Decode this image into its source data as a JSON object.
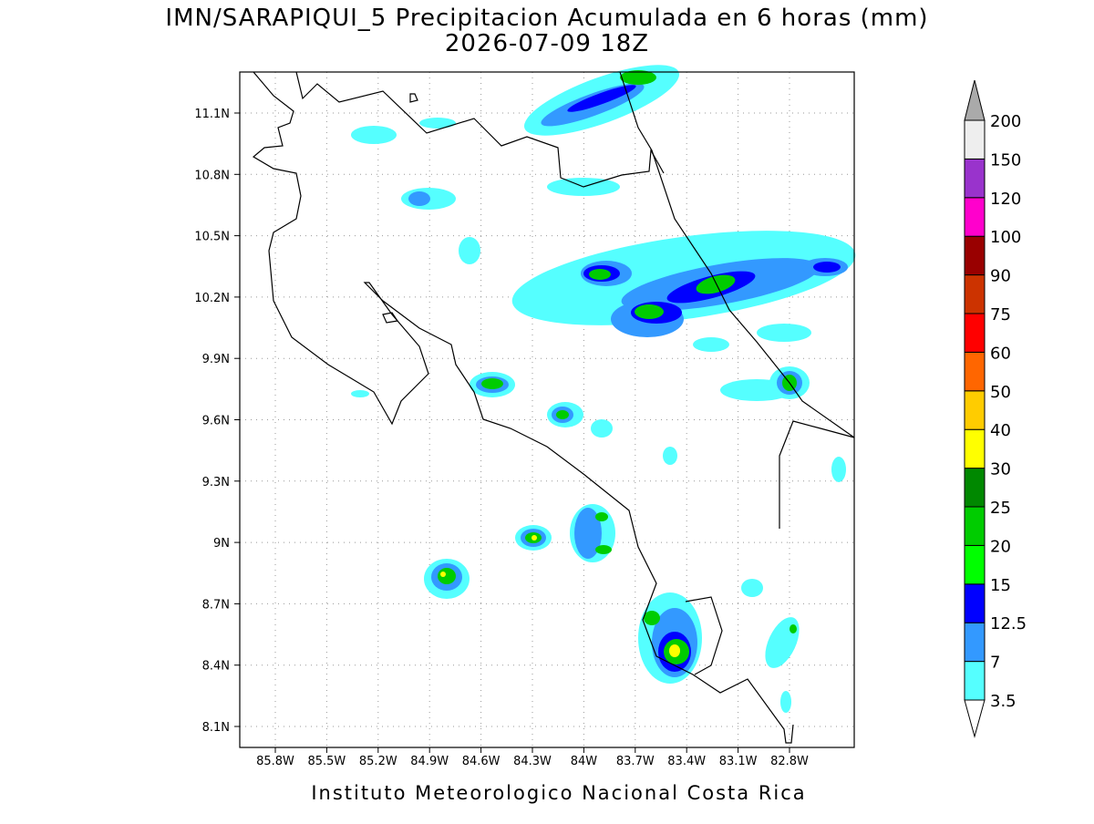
{
  "header": {
    "title": "IMN/SARAPIQUI_5 Precipitacion Acumulada en 6 horas (mm)",
    "subtitle": "2026-07-09 18Z"
  },
  "map": {
    "lon_labels": [
      "85.8W",
      "85.5W",
      "85.2W",
      "84.9W",
      "84.6W",
      "84.3W",
      "84W",
      "83.7W",
      "83.4W",
      "83.1W",
      "82.8W"
    ],
    "lat_labels": [
      "11.1N",
      "10.8N",
      "10.5N",
      "10.2N",
      "9.9N",
      "9.6N",
      "9.3N",
      "9N",
      "8.7N",
      "8.4N",
      "8.1N"
    ]
  },
  "colorbar": {
    "levels": [
      {
        "label": "3.5",
        "color": "#55ffff"
      },
      {
        "label": "7",
        "color": "#3399ff"
      },
      {
        "label": "12.5",
        "color": "#0000ff"
      },
      {
        "label": "15",
        "color": "#00ff00"
      },
      {
        "label": "20",
        "color": "#00cc00"
      },
      {
        "label": "25",
        "color": "#008800"
      },
      {
        "label": "30",
        "color": "#ffff00"
      },
      {
        "label": "40",
        "color": "#ffcc00"
      },
      {
        "label": "50",
        "color": "#ff6600"
      },
      {
        "label": "60",
        "color": "#ff0000"
      },
      {
        "label": "75",
        "color": "#cc3300"
      },
      {
        "label": "90",
        "color": "#990000"
      },
      {
        "label": "100",
        "color": "#ff00cc"
      },
      {
        "label": "120",
        "color": "#9933cc"
      },
      {
        "label": "150",
        "color": "#eeeeee"
      },
      {
        "label": "200",
        "color": "#aaaaaa"
      }
    ]
  },
  "footer": {
    "credit": "Instituto Meteorologico Nacional Costa Rica"
  }
}
